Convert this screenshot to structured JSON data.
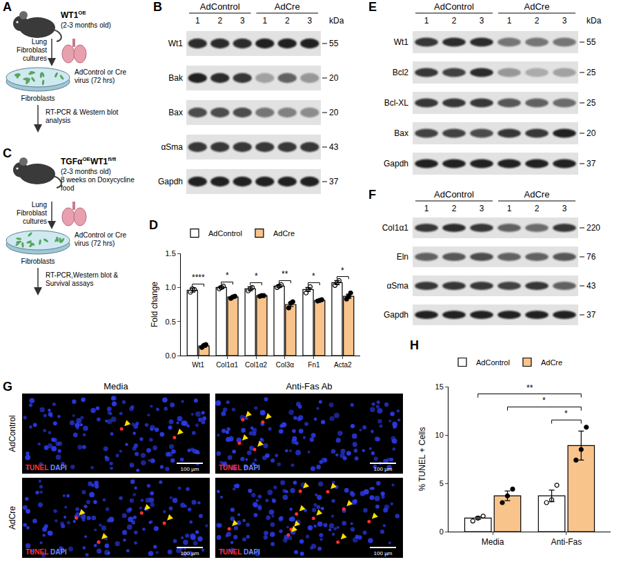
{
  "chart_data": [
    {
      "panel": "D",
      "type": "bar",
      "y_title": "Fold change",
      "categories": [
        "Wt1",
        "Col1α1",
        "Col1α2",
        "Col3α",
        "Fn1",
        "Acta2"
      ],
      "series": [
        {
          "name": "AdControl",
          "color": "#ffffff",
          "marker": "circle-open",
          "values": [
            0.96,
            1.0,
            0.98,
            1.02,
            0.97,
            1.07
          ],
          "error": [
            0.03,
            0.02,
            0.03,
            0.02,
            0.03,
            0.03
          ],
          "points": [
            [
              0.93,
              0.98,
              0.97
            ],
            [
              0.98,
              1.0,
              1.02
            ],
            [
              0.95,
              0.98,
              1.0
            ],
            [
              1.0,
              1.02,
              1.04
            ],
            [
              0.92,
              0.97,
              1.01
            ],
            [
              1.03,
              1.07,
              1.1
            ]
          ]
        },
        {
          "name": "AdCre",
          "color": "#f8c48c",
          "marker": "circle",
          "values": [
            0.14,
            0.86,
            0.88,
            0.75,
            0.81,
            0.87
          ],
          "error": [
            0.02,
            0.01,
            0.01,
            0.03,
            0.01,
            0.03
          ],
          "points": [
            [
              0.12,
              0.15,
              0.16
            ],
            [
              0.84,
              0.86,
              0.87
            ],
            [
              0.87,
              0.88,
              0.88
            ],
            [
              0.7,
              0.77,
              0.79
            ],
            [
              0.8,
              0.81,
              0.82
            ],
            [
              0.83,
              0.87,
              0.92
            ]
          ]
        }
      ],
      "significance": [
        {
          "category": "Wt1",
          "label": "****"
        },
        {
          "category": "Col1α1",
          "label": "*"
        },
        {
          "category": "Col1α2",
          "label": "*"
        },
        {
          "category": "Col3α",
          "label": "**"
        },
        {
          "category": "Fn1",
          "label": "*"
        },
        {
          "category": "Acta2",
          "label": "*"
        }
      ],
      "ylim": [
        0,
        1.5
      ],
      "yticks": [
        {
          "value": 0,
          "label": "0.0"
        },
        0.5,
        {
          "value": 1,
          "label": "1.0"
        },
        1.5
      ],
      "legend": "top",
      "grid": false
    },
    {
      "panel": "H",
      "type": "bar",
      "y_title": "% TUNEL + Cells",
      "categories": [
        "Media",
        "Anti-Fas"
      ],
      "series": [
        {
          "name": "AdControl",
          "color": "#ffffff",
          "marker": "circle-open",
          "values": [
            1.4,
            3.7
          ],
          "error": [
            0.15,
            0.6
          ],
          "points": [
            [
              1.1,
              1.4,
              1.6
            ],
            [
              3.0,
              3.3,
              4.8
            ]
          ]
        },
        {
          "name": "AdCre",
          "color": "#f8c48c",
          "marker": "circle",
          "values": [
            3.7,
            8.9
          ],
          "error": [
            0.5,
            1.5
          ],
          "points": [
            [
              3.0,
              3.7,
              4.4
            ],
            [
              7.4,
              8.5,
              10.8
            ]
          ]
        }
      ],
      "significance": [
        {
          "from": {
            "category": "Media",
            "series": "AdControl"
          },
          "to": {
            "category": "Anti-Fas",
            "series": "AdCre"
          },
          "label": "**"
        },
        {
          "from": {
            "category": "Media",
            "series": "AdCre"
          },
          "to": {
            "category": "Anti-Fas",
            "series": "AdCre"
          },
          "label": "*"
        },
        {
          "from": {
            "category": "Anti-Fas",
            "series": "AdControl"
          },
          "to": {
            "category": "Anti-Fas",
            "series": "AdCre"
          },
          "label": "*"
        }
      ],
      "ylim": [
        0,
        15
      ],
      "yticks": [
        0,
        5,
        10,
        15
      ],
      "legend": "top",
      "grid": false
    }
  ],
  "schematics": [
    {
      "panel": "A",
      "subject": [
        {
          "text": "WT1"
        },
        {
          "text": "OE",
          "sup": true
        }
      ],
      "details": [
        "(2-3 months old)"
      ],
      "culture": "Lung Fibroblast cultures",
      "treatment": "AdControl or Cre virus (72 hrs)",
      "cells": "Fibroblasts",
      "assays": "RT-PCR & Western blot analysis"
    },
    {
      "panel": "C",
      "subject": [
        {
          "text": "TGFα"
        },
        {
          "text": "OE",
          "sup": true
        },
        {
          "text": "WT1"
        },
        {
          "text": "fl/fl",
          "sup": true
        }
      ],
      "details": [
        "(2-3 months old)",
        "8 weeks on Doxycycline food"
      ],
      "culture": "Lung Fibroblast cultures",
      "treatment": "AdControl or Cre virus (72 hrs)",
      "cells": "Fibroblasts",
      "assays": "RT-PCR,Western blot & Survival assays"
    }
  ],
  "blots": [
    {
      "panel": "B",
      "groups": [
        "AdControl",
        "AdCre"
      ],
      "lanes": [
        1,
        2,
        3,
        1,
        2,
        3
      ],
      "unit": "kDa",
      "rows": [
        {
          "label": "Wt1",
          "kda": 55,
          "intensity": [
            0.85,
            0.85,
            0.85,
            0.9,
            0.9,
            0.9
          ]
        },
        {
          "label": "Bak",
          "kda": 20,
          "intensity": [
            0.9,
            0.85,
            0.8,
            0.3,
            0.6,
            0.35
          ]
        },
        {
          "label": "Bax",
          "kda": 20,
          "intensity": [
            0.7,
            0.7,
            0.7,
            0.5,
            0.45,
            0.4
          ]
        },
        {
          "label": "αSma",
          "kda": 43,
          "intensity": [
            0.8,
            0.8,
            0.8,
            0.8,
            0.8,
            0.8
          ]
        },
        {
          "label": "Gapdh",
          "kda": 37,
          "intensity": [
            0.9,
            0.9,
            0.9,
            0.9,
            0.9,
            0.9
          ]
        }
      ]
    },
    {
      "panel": "E",
      "groups": [
        "AdControl",
        "AdCre"
      ],
      "lanes": [
        1,
        2,
        3,
        1,
        2,
        3
      ],
      "unit": "kDa",
      "rows": [
        {
          "label": "Wt1",
          "kda": 55,
          "intensity": [
            0.8,
            0.85,
            0.85,
            0.5,
            0.5,
            0.5
          ]
        },
        {
          "label": "Bcl2",
          "kda": 25,
          "intensity": [
            0.8,
            0.75,
            0.85,
            0.35,
            0.25,
            0.3
          ]
        },
        {
          "label": "Bcl-XL",
          "kda": 25,
          "intensity": [
            0.8,
            0.8,
            0.8,
            0.65,
            0.6,
            0.55
          ]
        },
        {
          "label": "Bax",
          "kda": 20,
          "intensity": [
            0.75,
            0.75,
            0.7,
            0.8,
            0.8,
            0.9
          ]
        },
        {
          "label": "Gapdh",
          "kda": 37,
          "intensity": [
            0.9,
            0.9,
            0.9,
            0.9,
            0.9,
            0.9
          ]
        }
      ]
    },
    {
      "panel": "F",
      "groups": [
        "AdControl",
        "AdCre"
      ],
      "lanes": [
        1,
        2,
        3,
        1,
        2,
        3
      ],
      "unit": "",
      "rows": [
        {
          "label": "Col1α1",
          "kda": 220,
          "intensity": [
            0.8,
            0.85,
            0.8,
            0.6,
            0.55,
            0.8
          ]
        },
        {
          "label": "Eln",
          "kda": 76,
          "intensity": [
            0.6,
            0.65,
            0.7,
            0.6,
            0.6,
            0.65
          ]
        },
        {
          "label": "αSma",
          "kda": 43,
          "intensity": [
            0.8,
            0.8,
            0.8,
            0.75,
            0.8,
            0.6
          ]
        },
        {
          "label": "Gapdh",
          "kda": 37,
          "intensity": [
            0.9,
            0.9,
            0.9,
            0.9,
            0.9,
            0.9
          ]
        }
      ]
    }
  ],
  "micrographs": {
    "panel": "G",
    "columns": [
      "Media",
      "Anti-Fas Ab"
    ],
    "rows": [
      "AdControl",
      "AdCre"
    ],
    "stains": [
      {
        "text": "TUNEL",
        "color": "#ff3030"
      },
      {
        "text": "DAPI",
        "color": "#6f8cff"
      }
    ],
    "scale_bar": "100 µm",
    "marked_cells": [
      [
        2,
        4
      ],
      [
        4,
        10
      ]
    ]
  }
}
